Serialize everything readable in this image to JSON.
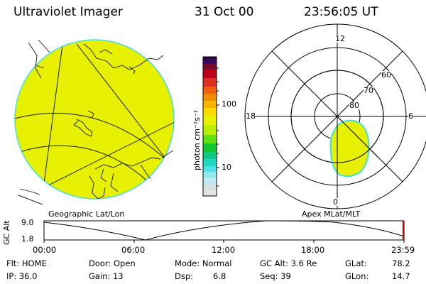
{
  "header": {
    "instrument": "Ultraviolet Imager",
    "date": "31 Oct 00",
    "time": "23:56:05 UT"
  },
  "colorbar": {
    "unit_label": "photon cm⁻²s⁻¹",
    "tick_100": "100",
    "tick_10": "10"
  },
  "polar_plot": {
    "mlt_labels": {
      "top": "12",
      "left": "18",
      "right": "6",
      "bottom": "0"
    },
    "lat_labels": [
      "60",
      "70",
      "80"
    ]
  },
  "captions": {
    "left": "Geographic Lat/Lon",
    "right": "Apex MLat/MLT"
  },
  "altitude_strip": {
    "axis_label": "GC Alt",
    "ymax": "9.0",
    "ymin": "1.8",
    "x_ticks": [
      "00:00",
      "06:00",
      "12:00",
      "18:00",
      "23:59"
    ]
  },
  "status": {
    "flt": "Flt: HOME",
    "ip": "IP: 36.0",
    "door": "Door: Open",
    "gain": "Gain: 13",
    "mode": "Mode: Normal",
    "dsp_label": "Dsp:",
    "dsp_value": "6.8",
    "gcalt": "GC Alt: 3.6 Re",
    "seq": "Seq: 39",
    "glat_label": "GLat:",
    "glat_value": "78.2",
    "glon_label": "GLon:",
    "glon_value": "14.7"
  },
  "colors": {
    "aurora_fill": "#e6f000",
    "aurora_edge": "#40e0e0",
    "alt_marker": "#c00000"
  }
}
